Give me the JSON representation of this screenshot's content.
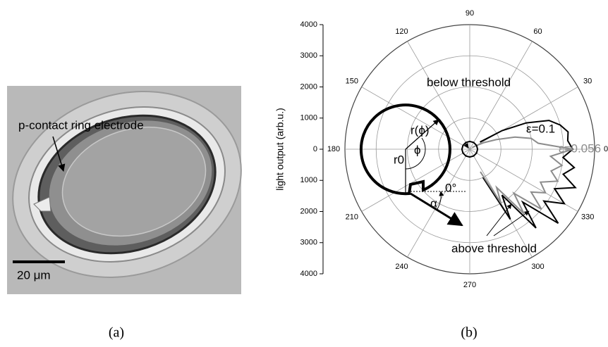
{
  "panel_a": {
    "label": "(a)",
    "annotation": "p-contact ring electrode",
    "scale_bar": "20 μm"
  },
  "chart_data": {
    "type": "polar",
    "panel_label": "(b)",
    "ylabel": "light output  (arb.u.)",
    "ylim": [
      -4000,
      4000
    ],
    "yticks": [
      4000,
      3000,
      2000,
      1000,
      0,
      {
        "value": -1000,
        "label": "1000"
      },
      {
        "value": -2000,
        "label": "2000"
      },
      {
        "value": -3000,
        "label": "3000"
      },
      {
        "value": -4000,
        "label": "4000"
      }
    ],
    "angle_ticks": [
      0,
      30,
      60,
      90,
      120,
      150,
      180,
      210,
      240,
      270,
      300,
      330
    ],
    "grid": true,
    "series": [
      {
        "name": "ε=0.1",
        "color": "#000000",
        "x": [
          -65,
          -60,
          -55,
          -50,
          -45,
          -40,
          -35,
          -30,
          -25,
          -20,
          -15,
          -10,
          -5,
          0,
          5,
          10,
          15,
          20,
          25,
          30,
          35
        ],
        "values": [
          1000,
          2600,
          1800,
          3300,
          2400,
          3700,
          2900,
          3500,
          3000,
          3600,
          3100,
          3400,
          3000,
          3300,
          3150,
          3200,
          3000,
          2700,
          2000,
          1200,
          400
        ]
      },
      {
        "name": "ε=0.056",
        "color": "#8c8c8c",
        "x": [
          -65,
          -60,
          -55,
          -50,
          -45,
          -40,
          -35,
          -30,
          -25,
          -20,
          -15,
          -10,
          -5,
          0,
          5,
          10,
          15,
          20,
          25,
          30,
          35
        ],
        "values": [
          800,
          2000,
          1500,
          2700,
          2000,
          3000,
          2400,
          2800,
          2500,
          3000,
          2700,
          3000,
          2600,
          3300,
          2200,
          2000,
          1500,
          900,
          500,
          200,
          100
        ]
      },
      {
        "name": "below threshold",
        "color": "#000000",
        "x": [
          0,
          30,
          60,
          90,
          120,
          150,
          180,
          210,
          240,
          270,
          300,
          330,
          360
        ],
        "values": [
          250,
          250,
          250,
          250,
          250,
          250,
          250,
          250,
          250,
          250,
          250,
          250,
          250
        ]
      }
    ],
    "annotations": [
      "above threshold",
      "r(ϕ)",
      "r0",
      "ϕ",
      "α",
      "0°"
    ]
  }
}
